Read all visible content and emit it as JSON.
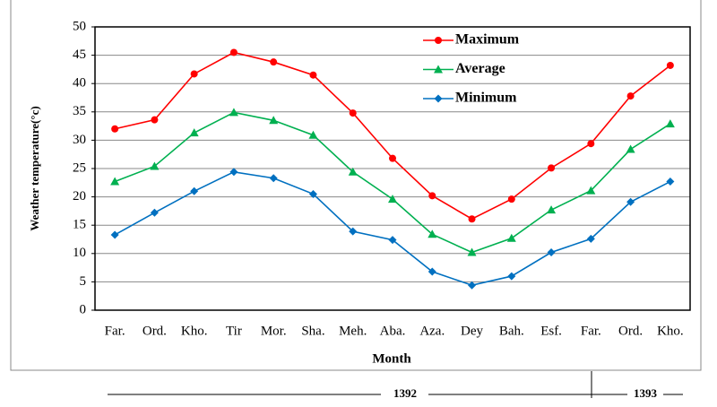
{
  "chart_data": {
    "type": "line",
    "x_label": "Month",
    "y_label": "Weather temperature(°c)",
    "categories": [
      "Far.",
      "Ord.",
      "Kho.",
      "Tir",
      "Mor.",
      "Sha.",
      "Meh.",
      "Aba.",
      "Aza.",
      "Dey",
      "Bah.",
      "Esf.",
      "Far.",
      "Ord.",
      "Kho."
    ],
    "series": [
      {
        "name": "Maximum",
        "color": "#ff0000",
        "marker": "circle",
        "values": [
          32,
          33.6,
          41.7,
          45.5,
          43.8,
          41.5,
          34.8,
          26.8,
          20.2,
          16.1,
          19.6,
          25.1,
          29.4,
          37.8,
          43.2
        ]
      },
      {
        "name": "Average",
        "color": "#00b050",
        "marker": "triangle",
        "values": [
          22.7,
          25.4,
          31.3,
          34.9,
          33.5,
          30.9,
          24.4,
          19.6,
          13.4,
          10.2,
          12.7,
          17.7,
          21.1,
          28.4,
          32.9
        ]
      },
      {
        "name": "Minimum",
        "color": "#0070c0",
        "marker": "diamond",
        "values": [
          13.3,
          17.2,
          21.0,
          24.4,
          23.3,
          20.5,
          13.9,
          12.4,
          6.8,
          4.4,
          6.0,
          10.2,
          12.6,
          19.1,
          22.7
        ]
      }
    ],
    "ylim": [
      0,
      50
    ],
    "yticks": [
      0,
      5,
      10,
      15,
      20,
      25,
      30,
      35,
      40,
      45,
      50
    ],
    "grid": true,
    "legend": "top-center",
    "annotations": [
      "1392",
      "1393"
    ]
  }
}
